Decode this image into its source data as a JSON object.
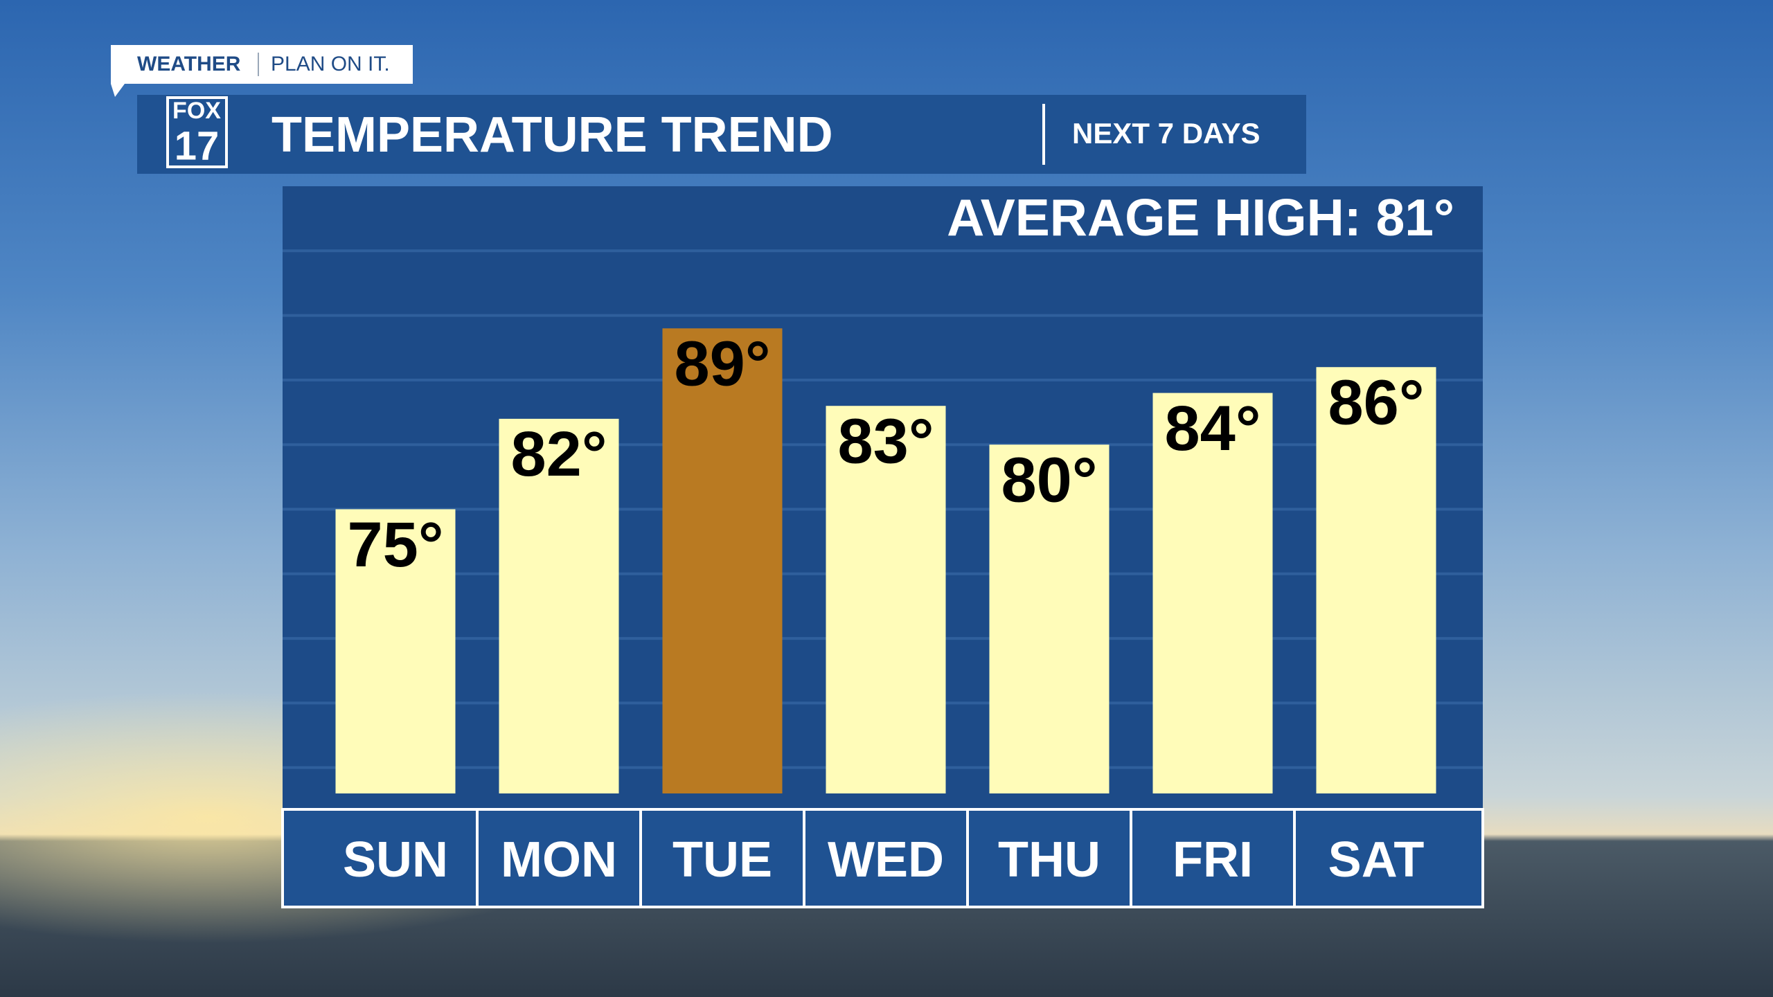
{
  "brand": {
    "tag": "WEATHER",
    "slogan": "PLAN ON IT.",
    "logo_top": "FOX",
    "logo_bottom": "17"
  },
  "chart_data": {
    "type": "bar",
    "title": "TEMPERATURE TREND",
    "subtitle": "NEXT 7 DAYS",
    "annotation": "AVERAGE HIGH:  81°",
    "categories": [
      "SUN",
      "MON",
      "TUE",
      "WED",
      "THU",
      "FRI",
      "SAT"
    ],
    "values": [
      75,
      82,
      89,
      83,
      80,
      84,
      86
    ],
    "value_labels": [
      "75°",
      "82°",
      "89°",
      "83°",
      "80°",
      "84°",
      "86°"
    ],
    "colors": [
      "#fffcb9",
      "#fffcb9",
      "#b97a22",
      "#fffcb9",
      "#fffcb9",
      "#fffcb9",
      "#fffcb9"
    ],
    "ylim": [
      53,
      100
    ],
    "yticks": [
      55,
      60,
      65,
      70,
      75,
      80,
      85,
      90,
      95
    ],
    "grid": true
  }
}
